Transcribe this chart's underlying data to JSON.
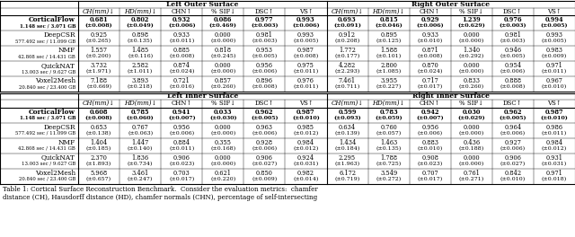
{
  "methods": [
    [
      "CorticalFlow",
      "1.148 sec / 3.071 GB"
    ],
    [
      "DeepCSR",
      "577.492 sec / 11.099 GB"
    ],
    [
      "NMF",
      "42.808 sec / 14.431 GB"
    ],
    [
      "QuickNAT",
      "13.003 sec / 9.627 GB"
    ],
    [
      "Voxel2Mesh",
      "20.840 sec / 23.400 GB"
    ]
  ],
  "col_headers": [
    "CH(mm)↓",
    "HD(mm)↓",
    "CHN↑",
    "% SIF↓",
    "DSC↑",
    "VS↑"
  ],
  "left_outer_vals": [
    [
      "0.681",
      "0.802",
      "0.932",
      "0.086",
      "0.977",
      "0.993"
    ],
    [
      "(±0.008)",
      "(±0.049)",
      "(±0.006)",
      "(±0.469)",
      "(±0.003)",
      "(±0.006)"
    ],
    [
      "0.925",
      "0.898",
      "0.933",
      "0.000",
      "0.981",
      "0.993"
    ],
    [
      "(±0.265)",
      "(±0.135)",
      "(±0.011)",
      "(±0.000)",
      "(±0.003)",
      "(±0.005)"
    ],
    [
      "1.557",
      "1.485",
      "0.885",
      "0.818",
      "0.953",
      "0.987"
    ],
    [
      "(±0.200)",
      "(±0.116)",
      "(±0.008)",
      "(±0.245)",
      "(±0.005)",
      "(±0.008)"
    ],
    [
      "3.732",
      "2.582",
      "0.874",
      "0.000",
      "0.956",
      "0.975"
    ],
    [
      "(±1.971)",
      "(±1.011)",
      "(±0.024)",
      "(±0.000)",
      "(±0.006)",
      "(±0.011)"
    ],
    [
      "7.188",
      "3.893",
      "0.721",
      "0.857",
      "0.896",
      "0.976"
    ],
    [
      "(±0.669)",
      "(±0.218)",
      "(±0.016)",
      "(±0.260)",
      "(±0.008)",
      "(±0.011)"
    ]
  ],
  "right_outer_vals": [
    [
      "0.693",
      "0.815",
      "0.929",
      "1.239",
      "0.976",
      "0.994"
    ],
    [
      "(±0.091)",
      "(±0.046)",
      "(±0.006)",
      "(±0.629)",
      "(±0.003)",
      "(±0.005)"
    ],
    [
      "0.912",
      "0.895",
      "0.933",
      "0.000",
      "0.981",
      "0.993"
    ],
    [
      "(±0.208)",
      "(±0.125)",
      "(±0.010)",
      "(±0.000)",
      "(±0.003)",
      "(±0.005)"
    ],
    [
      "1.772",
      "1.588",
      "0.871",
      "1.340",
      "0.946",
      "0.983"
    ],
    [
      "(±0.177)",
      "(±0.101)",
      "(±0.008)",
      "(±0.292)",
      "(±0.005)",
      "(±0.009)"
    ],
    [
      "4.282",
      "2.800",
      "0.870",
      "0.000",
      "0.954",
      "0.971"
    ],
    [
      "(±2.293)",
      "(±1.085)",
      "(±0.024)",
      "(±0.000)",
      "(±0.006)",
      "(±0.011)"
    ],
    [
      "7.461",
      "3.955",
      "0.717",
      "0.833",
      "0.888",
      "0.967"
    ],
    [
      "(±0.711)",
      "(±0.227)",
      "(±0.017)",
      "(±0.260)",
      "(±0.008)",
      "(±0.010)"
    ]
  ],
  "left_inner_vals": [
    [
      "0.608",
      "0.785",
      "0.941",
      "0.033",
      "0.962",
      "0.987"
    ],
    [
      "(±0.008)",
      "(±0.060)",
      "(±0.007)",
      "(±0.030)",
      "(±0.005)",
      "(±0.010)"
    ],
    [
      "0.653",
      "0.767",
      "0.956",
      "0.000",
      "0.963",
      "0.985"
    ],
    [
      "(±0.138)",
      "(±0.063)",
      "(±0.006)",
      "(±0.000)",
      "(±0.006)",
      "(±0.012)"
    ],
    [
      "1.404",
      "1.447",
      "0.884",
      "0.355",
      "0.928",
      "0.984"
    ],
    [
      "(±0.185)",
      "(±0.140)",
      "(±0.011)",
      "(±0.168)",
      "(±0.006)",
      "(±0.012)"
    ],
    [
      "2.370",
      "1.836",
      "0.906",
      "0.000",
      "0.906",
      "0.924"
    ],
    [
      "(±1.893)",
      "(±0.734)",
      "(±0.023)",
      "(±0.000)",
      "(±0.027)",
      "(±0.031)"
    ],
    [
      "5.968",
      "3.461",
      "0.703",
      "0.621",
      "0.850",
      "0.982"
    ],
    [
      "(±0.657)",
      "(±0.247)",
      "(±0.017)",
      "(±0.220)",
      "(±0.009)",
      "(±0.014)"
    ]
  ],
  "right_inner_vals": [
    [
      "0.599",
      "0.783",
      "0.942",
      "0.030",
      "0.962",
      "0.987"
    ],
    [
      "(±0.093)",
      "(±0.059)",
      "(±0.007)",
      "(±0.029)",
      "(±0.005)",
      "(±0.010)"
    ],
    [
      "0.634",
      "0.760",
      "0.956",
      "0.000",
      "0.964",
      "0.986"
    ],
    [
      "(±0.139)",
      "(±0.057)",
      "(±0.006)",
      "(±0.000)",
      "(±0.006)",
      "(±0.011)"
    ],
    [
      "1.434",
      "1.463",
      "0.883",
      "0.436",
      "0.927",
      "0.984"
    ],
    [
      "(±0.184)",
      "(±0.135)",
      "(±0.010)",
      "(±0.188)",
      "(±0.006)",
      "(±0.012)"
    ],
    [
      "2.295",
      "1.788",
      "0.908",
      "0.000",
      "0.906",
      "0.931"
    ],
    [
      "(±1.963)",
      "(±0.725)",
      "(±0.023)",
      "(±0.000)",
      "(±0.027)",
      "(±0.031)"
    ],
    [
      "6.172",
      "3.549",
      "0.707",
      "0.761",
      "0.842",
      "0.971"
    ],
    [
      "(±0.719)",
      "(±0.272)",
      "(±0.017)",
      "(±0.271)",
      "(±0.010)",
      "(±0.018)"
    ]
  ],
  "caption_line1": "Table 1: Cortical Surface Reconstruction Benchmark.  Consider the evaluation metrics:  chamfer",
  "caption_line2": "distance (CH), Hausdorff distance (HD), chamfer normals (CHN), percentage of self-intersecting",
  "figsize": [
    6.4,
    2.64
  ],
  "dpi": 100
}
